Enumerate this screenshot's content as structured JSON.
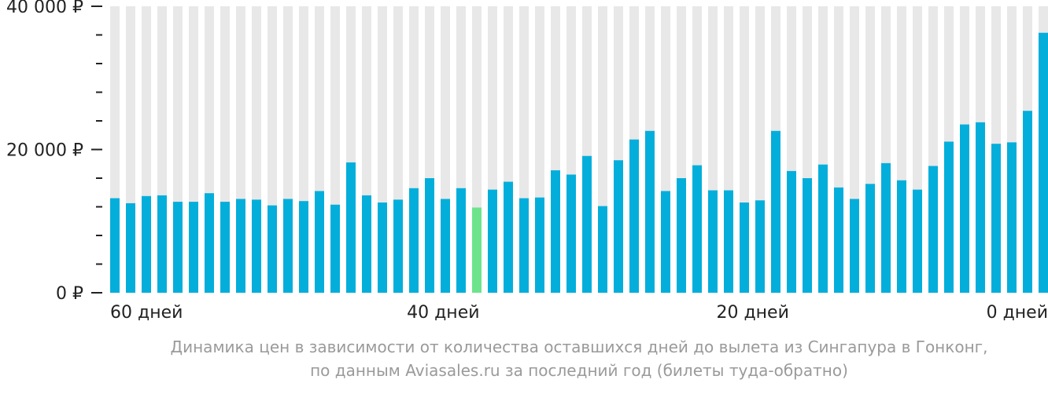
{
  "chart_data": {
    "type": "bar",
    "y_ticks": [
      {
        "value": 40000,
        "label": "40 000 ₽"
      },
      {
        "value": 20000,
        "label": "20 000 ₽"
      },
      {
        "value": 0,
        "label": "0 ₽"
      }
    ],
    "ylim": [
      0,
      40000
    ],
    "minor_tick_step": 4000,
    "x_labels": [
      {
        "days": 60,
        "label": "60 дней"
      },
      {
        "days": 40,
        "label": "40 дней"
      },
      {
        "days": 20,
        "label": "20 дней"
      },
      {
        "days": 0,
        "label": "0 дней"
      }
    ],
    "days_range": [
      60,
      0
    ],
    "values": [
      13200,
      12500,
      13500,
      13600,
      12700,
      12700,
      13900,
      12700,
      13100,
      13000,
      12200,
      13100,
      12800,
      14200,
      12300,
      18200,
      13600,
      12600,
      13000,
      14600,
      16000,
      13100,
      14600,
      11900,
      14400,
      15500,
      13200,
      13300,
      17100,
      16500,
      19100,
      12100,
      18500,
      21400,
      22600,
      14200,
      16000,
      17800,
      14300,
      14300,
      12600,
      12900,
      22600,
      17000,
      16000,
      17900,
      14700,
      13100,
      15200,
      18100,
      15700,
      14400,
      17700,
      21100,
      23500,
      23800,
      20800,
      21000,
      25400,
      36300
    ],
    "highlight_index": 23,
    "colors": {
      "bar": "#04aedb",
      "highlight": "#6de48b",
      "background_stripe": "#e8e8e8",
      "axis": "#222222",
      "caption": "#9a9a9a"
    },
    "caption_lines": [
      "Динамика цен в зависимости от количества оставшихся дней до вылета из Сингапура в Гонконг,",
      "по данным Aviasales.ru за последний год (билеты туда-обратно)"
    ]
  }
}
